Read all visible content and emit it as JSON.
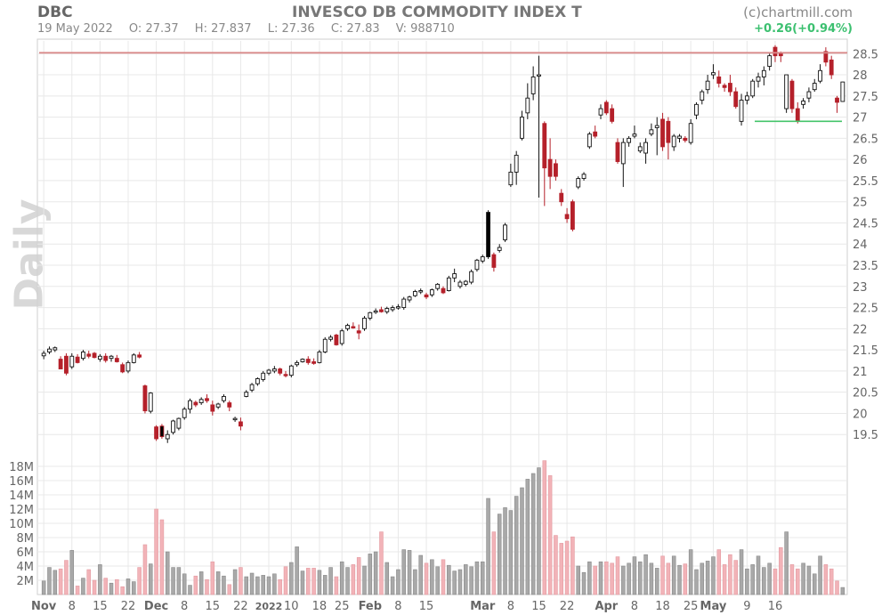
{
  "header": {
    "ticker": "DBC",
    "title": "INVESCO DB COMMODITY INDEX T",
    "source": "(c)chartmill.com",
    "date": "19 May 2022",
    "open": "O: 27.37",
    "high": "H: 27.837",
    "low": "L: 27.36",
    "close": "C: 27.83",
    "volume": "V: 988710",
    "change": "+0.26(+0.94%)"
  },
  "period_label": "Daily",
  "colors": {
    "up": "#ffffff",
    "up_outline": "#000000",
    "down": "#b5202a",
    "volume_up": "#a9a9a9",
    "volume_down": "#f2b3b8",
    "resistance": "#d98a8a",
    "support": "#44c46a",
    "grid": "#e8e8e8"
  },
  "chart_data": {
    "type": "candlestick",
    "y_ticks": [
      "19.5",
      "20",
      "20.5",
      "21",
      "21.5",
      "22",
      "22.5",
      "23",
      "23.5",
      "24",
      "24.5",
      "25",
      "25.5",
      "26",
      "26.5",
      "27",
      "27.5",
      "28",
      "28.5"
    ],
    "ylim": [
      19.0,
      28.8
    ],
    "resistance_level": 28.52,
    "support_level": 26.9,
    "support_start_index": 127,
    "volume_ticks": [
      "2M",
      "4M",
      "6M",
      "8M",
      "10M",
      "12M",
      "14M",
      "16M",
      "18M"
    ],
    "volume_max": 19.5,
    "x_labels": [
      {
        "i": 0,
        "label": "Nov",
        "kind": "month"
      },
      {
        "i": 5,
        "label": "8",
        "kind": "day"
      },
      {
        "i": 10,
        "label": "15",
        "kind": "day"
      },
      {
        "i": 15,
        "label": "22",
        "kind": "day"
      },
      {
        "i": 20,
        "label": "Dec",
        "kind": "month"
      },
      {
        "i": 25,
        "label": "8",
        "kind": "day"
      },
      {
        "i": 30,
        "label": "15",
        "kind": "day"
      },
      {
        "i": 35,
        "label": "22",
        "kind": "day"
      },
      {
        "i": 40,
        "label": "2022",
        "kind": "year"
      },
      {
        "i": 44,
        "label": "10",
        "kind": "day"
      },
      {
        "i": 49,
        "label": "18",
        "kind": "day"
      },
      {
        "i": 53,
        "label": "25",
        "kind": "day"
      },
      {
        "i": 58,
        "label": "Feb",
        "kind": "month"
      },
      {
        "i": 63,
        "label": "8",
        "kind": "day"
      },
      {
        "i": 68,
        "label": "15",
        "kind": "day"
      },
      {
        "i": 78,
        "label": "Mar",
        "kind": "month"
      },
      {
        "i": 83,
        "label": "8",
        "kind": "day"
      },
      {
        "i": 88,
        "label": "15",
        "kind": "day"
      },
      {
        "i": 93,
        "label": "22",
        "kind": "day"
      },
      {
        "i": 100,
        "label": "Apr",
        "kind": "month"
      },
      {
        "i": 105,
        "label": "8",
        "kind": "day"
      },
      {
        "i": 110,
        "label": "18",
        "kind": "day"
      },
      {
        "i": 115,
        "label": "25",
        "kind": "day"
      },
      {
        "i": 119,
        "label": "May",
        "kind": "month"
      },
      {
        "i": 125,
        "label": "9",
        "kind": "day"
      },
      {
        "i": 130,
        "label": "16",
        "kind": "day"
      }
    ],
    "candles": [
      [
        21.36,
        21.48,
        21.28,
        21.42,
        1.9
      ],
      [
        21.45,
        21.58,
        21.4,
        21.52,
        3.8
      ],
      [
        21.5,
        21.58,
        21.45,
        21.55,
        3.4
      ],
      [
        21.28,
        21.35,
        21.05,
        21.05,
        3.6
      ],
      [
        21.35,
        21.42,
        20.9,
        20.95,
        4.8
      ],
      [
        21.1,
        21.42,
        21.05,
        21.35,
        6.2
      ],
      [
        21.33,
        21.4,
        21.18,
        21.2,
        1.2
      ],
      [
        21.3,
        21.5,
        21.25,
        21.45,
        2.3
      ],
      [
        21.4,
        21.48,
        21.3,
        21.35,
        3.5
      ],
      [
        21.42,
        21.45,
        21.3,
        21.32,
        2.0
      ],
      [
        21.28,
        21.4,
        21.22,
        21.35,
        4.2
      ],
      [
        21.35,
        21.42,
        21.2,
        21.25,
        2.3
      ],
      [
        21.3,
        21.38,
        21.22,
        21.35,
        1.6
      ],
      [
        21.3,
        21.38,
        21.2,
        21.22,
        2.1
      ],
      [
        21.15,
        21.2,
        20.95,
        20.98,
        1.1
      ],
      [
        21.0,
        21.25,
        20.95,
        21.2,
        2.2
      ],
      [
        21.2,
        21.42,
        21.18,
        21.38,
        1.8
      ],
      [
        21.38,
        21.45,
        21.3,
        21.33,
        3.8
      ],
      [
        20.65,
        20.68,
        20.0,
        20.06,
        7.0
      ],
      [
        20.05,
        20.5,
        20.0,
        20.48,
        4.3
      ],
      [
        19.68,
        19.72,
        19.35,
        19.4,
        12.0
      ],
      [
        19.7,
        19.75,
        19.4,
        19.45,
        10.5
      ],
      [
        19.4,
        19.6,
        19.3,
        19.5,
        6.0
      ],
      [
        19.55,
        19.85,
        19.5,
        19.82,
        3.8
      ],
      [
        19.65,
        19.9,
        19.6,
        19.88,
        3.8
      ],
      [
        19.9,
        20.15,
        19.85,
        20.1,
        2.9
      ],
      [
        20.1,
        20.35,
        20.0,
        20.3,
        1.3
      ],
      [
        20.26,
        20.3,
        20.15,
        20.2,
        2.6
      ],
      [
        20.25,
        20.38,
        20.2,
        20.33,
        3.2
      ],
      [
        20.35,
        20.45,
        20.25,
        20.3,
        2.1
      ],
      [
        20.2,
        20.3,
        19.95,
        20.05,
        4.6
      ],
      [
        20.15,
        20.25,
        20.1,
        20.22,
        3.2
      ],
      [
        20.3,
        20.45,
        20.25,
        20.4,
        2.6
      ],
      [
        20.25,
        20.3,
        20.05,
        20.15,
        1.4
      ],
      [
        19.85,
        19.92,
        19.8,
        19.88,
        3.5
      ],
      [
        19.8,
        19.9,
        19.6,
        19.7,
        3.8
      ],
      [
        20.4,
        20.55,
        20.38,
        20.5,
        2.5
      ],
      [
        20.55,
        20.72,
        20.5,
        20.68,
        3.0
      ],
      [
        20.7,
        20.85,
        20.65,
        20.82,
        2.5
      ],
      [
        20.8,
        21.0,
        20.75,
        20.95,
        2.7
      ],
      [
        20.95,
        21.05,
        20.9,
        21.02,
        2.5
      ],
      [
        21.0,
        21.12,
        20.95,
        21.05,
        2.9
      ],
      [
        21.05,
        21.08,
        20.9,
        20.95,
        2.1
      ],
      [
        20.92,
        21.0,
        20.85,
        20.9,
        3.9
      ],
      [
        20.9,
        21.15,
        20.85,
        21.12,
        4.5
      ],
      [
        21.15,
        21.25,
        21.1,
        21.2,
        6.7
      ],
      [
        21.22,
        21.3,
        21.2,
        21.28,
        3.3
      ],
      [
        21.28,
        21.35,
        21.15,
        21.2,
        3.7
      ],
      [
        21.22,
        21.3,
        21.15,
        21.18,
        3.7
      ],
      [
        21.2,
        21.5,
        21.18,
        21.45,
        3.4
      ],
      [
        21.45,
        21.8,
        21.42,
        21.75,
        2.7
      ],
      [
        21.75,
        21.85,
        21.7,
        21.8,
        3.8
      ],
      [
        21.85,
        21.88,
        21.6,
        21.62,
        2.5
      ],
      [
        21.65,
        22.0,
        21.6,
        21.95,
        4.6
      ],
      [
        22.0,
        22.12,
        21.95,
        22.08,
        3.8
      ],
      [
        22.05,
        22.15,
        22.0,
        22.02,
        4.2
      ],
      [
        21.95,
        22.1,
        21.75,
        21.9,
        5.2
      ],
      [
        22.0,
        22.3,
        21.95,
        22.25,
        4.0
      ],
      [
        22.25,
        22.4,
        22.2,
        22.38,
        5.7
      ],
      [
        22.4,
        22.48,
        22.35,
        22.42,
        6.0
      ],
      [
        22.45,
        22.52,
        22.38,
        22.4,
        8.8
      ],
      [
        22.4,
        22.52,
        22.35,
        22.48,
        4.5
      ],
      [
        22.45,
        22.55,
        22.4,
        22.5,
        2.5
      ],
      [
        22.5,
        22.58,
        22.45,
        22.52,
        3.5
      ],
      [
        22.5,
        22.75,
        22.45,
        22.7,
        6.3
      ],
      [
        22.68,
        22.78,
        22.62,
        22.75,
        6.2
      ],
      [
        22.78,
        22.92,
        22.75,
        22.88,
        3.5
      ],
      [
        22.88,
        22.95,
        22.82,
        22.9,
        5.5
      ],
      [
        22.8,
        22.85,
        22.7,
        22.75,
        4.4
      ],
      [
        22.8,
        22.95,
        22.75,
        22.92,
        4.9
      ],
      [
        22.95,
        23.08,
        22.9,
        23.05,
        3.9
      ],
      [
        22.95,
        23.0,
        22.82,
        22.85,
        4.9
      ],
      [
        22.9,
        23.25,
        22.88,
        23.2,
        4.1
      ],
      [
        23.2,
        23.42,
        23.1,
        23.3,
        3.3
      ],
      [
        23.0,
        23.15,
        22.95,
        23.1,
        3.5
      ],
      [
        23.05,
        23.15,
        23.0,
        23.12,
        4.2
      ],
      [
        23.1,
        23.4,
        23.05,
        23.35,
        3.9
      ],
      [
        23.4,
        23.65,
        23.35,
        23.62,
        4.6
      ],
      [
        23.6,
        23.75,
        23.55,
        23.7,
        4.6
      ],
      [
        23.7,
        24.8,
        23.65,
        24.75,
        13.5
      ],
      [
        23.75,
        23.8,
        23.35,
        23.45,
        8.8
      ],
      [
        23.85,
        24.0,
        23.8,
        23.92,
        11.3
      ],
      [
        24.1,
        24.5,
        24.05,
        24.45,
        12.2
      ],
      [
        25.4,
        25.9,
        25.35,
        25.7,
        11.8
      ],
      [
        25.7,
        26.2,
        25.4,
        26.1,
        13.8
      ],
      [
        26.5,
        27.15,
        26.45,
        27.0,
        15.0
      ],
      [
        27.1,
        27.8,
        26.95,
        27.45,
        16.2
      ],
      [
        27.55,
        28.2,
        27.4,
        27.95,
        17.0
      ],
      [
        28.0,
        28.45,
        25.1,
        28.0,
        17.8
      ],
      [
        26.85,
        26.9,
        24.9,
        25.8,
        18.8
      ],
      [
        26.0,
        26.5,
        25.3,
        25.6,
        16.7
      ],
      [
        25.9,
        26.0,
        25.5,
        25.6,
        8.3
      ],
      [
        25.2,
        25.3,
        24.9,
        25.0,
        7.2
      ],
      [
        24.7,
        24.85,
        24.5,
        24.6,
        7.5
      ],
      [
        25.0,
        25.05,
        24.3,
        24.35,
        8.1
      ],
      [
        25.35,
        25.6,
        25.3,
        25.55,
        4.0
      ],
      [
        25.55,
        25.7,
        25.5,
        25.65,
        3.1
      ],
      [
        26.3,
        26.65,
        26.25,
        26.6,
        4.6
      ],
      [
        26.65,
        26.8,
        26.5,
        26.55,
        4.0
      ],
      [
        27.05,
        27.3,
        26.95,
        27.2,
        4.6
      ],
      [
        27.35,
        27.4,
        27.05,
        27.1,
        4.6
      ],
      [
        27.2,
        27.3,
        26.85,
        26.9,
        4.4
      ],
      [
        26.4,
        26.5,
        25.9,
        25.95,
        5.3
      ],
      [
        25.9,
        26.5,
        25.35,
        26.4,
        4.0
      ],
      [
        26.4,
        26.55,
        26.3,
        26.5,
        4.4
      ],
      [
        26.55,
        26.8,
        26.5,
        26.6,
        5.3
      ],
      [
        26.2,
        26.4,
        26.15,
        26.3,
        4.6
      ],
      [
        26.15,
        26.5,
        25.9,
        26.4,
        5.6
      ],
      [
        26.6,
        26.85,
        26.55,
        26.7,
        4.4
      ],
      [
        26.75,
        27.0,
        26.1,
        26.8,
        3.7
      ],
      [
        26.95,
        27.1,
        26.2,
        26.3,
        5.4
      ],
      [
        26.9,
        27.0,
        26.0,
        26.4,
        4.4
      ],
      [
        26.3,
        26.6,
        26.2,
        26.55,
        5.4
      ],
      [
        26.5,
        26.6,
        26.4,
        26.55,
        4.1
      ],
      [
        26.5,
        26.55,
        26.4,
        26.45,
        4.3
      ],
      [
        26.4,
        26.95,
        26.35,
        26.85,
        6.3
      ],
      [
        27.05,
        27.35,
        26.95,
        27.3,
        3.5
      ],
      [
        27.4,
        27.65,
        27.3,
        27.6,
        4.4
      ],
      [
        27.65,
        28.0,
        27.55,
        27.85,
        4.7
      ],
      [
        28.0,
        28.25,
        27.9,
        28.05,
        5.3
      ],
      [
        27.95,
        28.1,
        27.7,
        27.8,
        6.3
      ],
      [
        27.75,
        27.8,
        27.6,
        27.7,
        4.2
      ],
      [
        27.8,
        28.0,
        27.5,
        27.6,
        5.6
      ],
      [
        27.6,
        27.7,
        27.2,
        27.25,
        4.8
      ],
      [
        26.9,
        27.55,
        26.8,
        27.4,
        6.3
      ],
      [
        27.4,
        27.6,
        27.3,
        27.5,
        3.6
      ],
      [
        27.5,
        27.9,
        27.45,
        27.85,
        4.2
      ],
      [
        27.85,
        28.05,
        27.7,
        27.95,
        5.4
      ],
      [
        27.95,
        28.2,
        27.75,
        28.1,
        3.8
      ],
      [
        28.2,
        28.5,
        28.1,
        28.45,
        4.4
      ],
      [
        28.65,
        28.7,
        28.3,
        28.45,
        3.6
      ],
      [
        28.5,
        28.55,
        28.3,
        28.45,
        6.6
      ],
      [
        27.2,
        28.0,
        27.1,
        28.0,
        8.8
      ],
      [
        27.85,
        27.9,
        27.1,
        27.2,
        4.2
      ],
      [
        27.2,
        27.35,
        26.85,
        26.9,
        3.6
      ],
      [
        27.3,
        27.45,
        27.2,
        27.38,
        4.4
      ],
      [
        27.45,
        27.7,
        27.35,
        27.6,
        4.0
      ],
      [
        27.65,
        27.9,
        27.6,
        27.8,
        2.9
      ],
      [
        27.85,
        28.25,
        27.8,
        28.1,
        5.4
      ],
      [
        28.55,
        28.65,
        28.2,
        28.3,
        4.2
      ],
      [
        28.35,
        28.45,
        27.9,
        28.0,
        3.6
      ],
      [
        27.45,
        27.5,
        27.1,
        27.35,
        1.9
      ],
      [
        27.37,
        27.837,
        27.36,
        27.83,
        0.99
      ]
    ]
  }
}
